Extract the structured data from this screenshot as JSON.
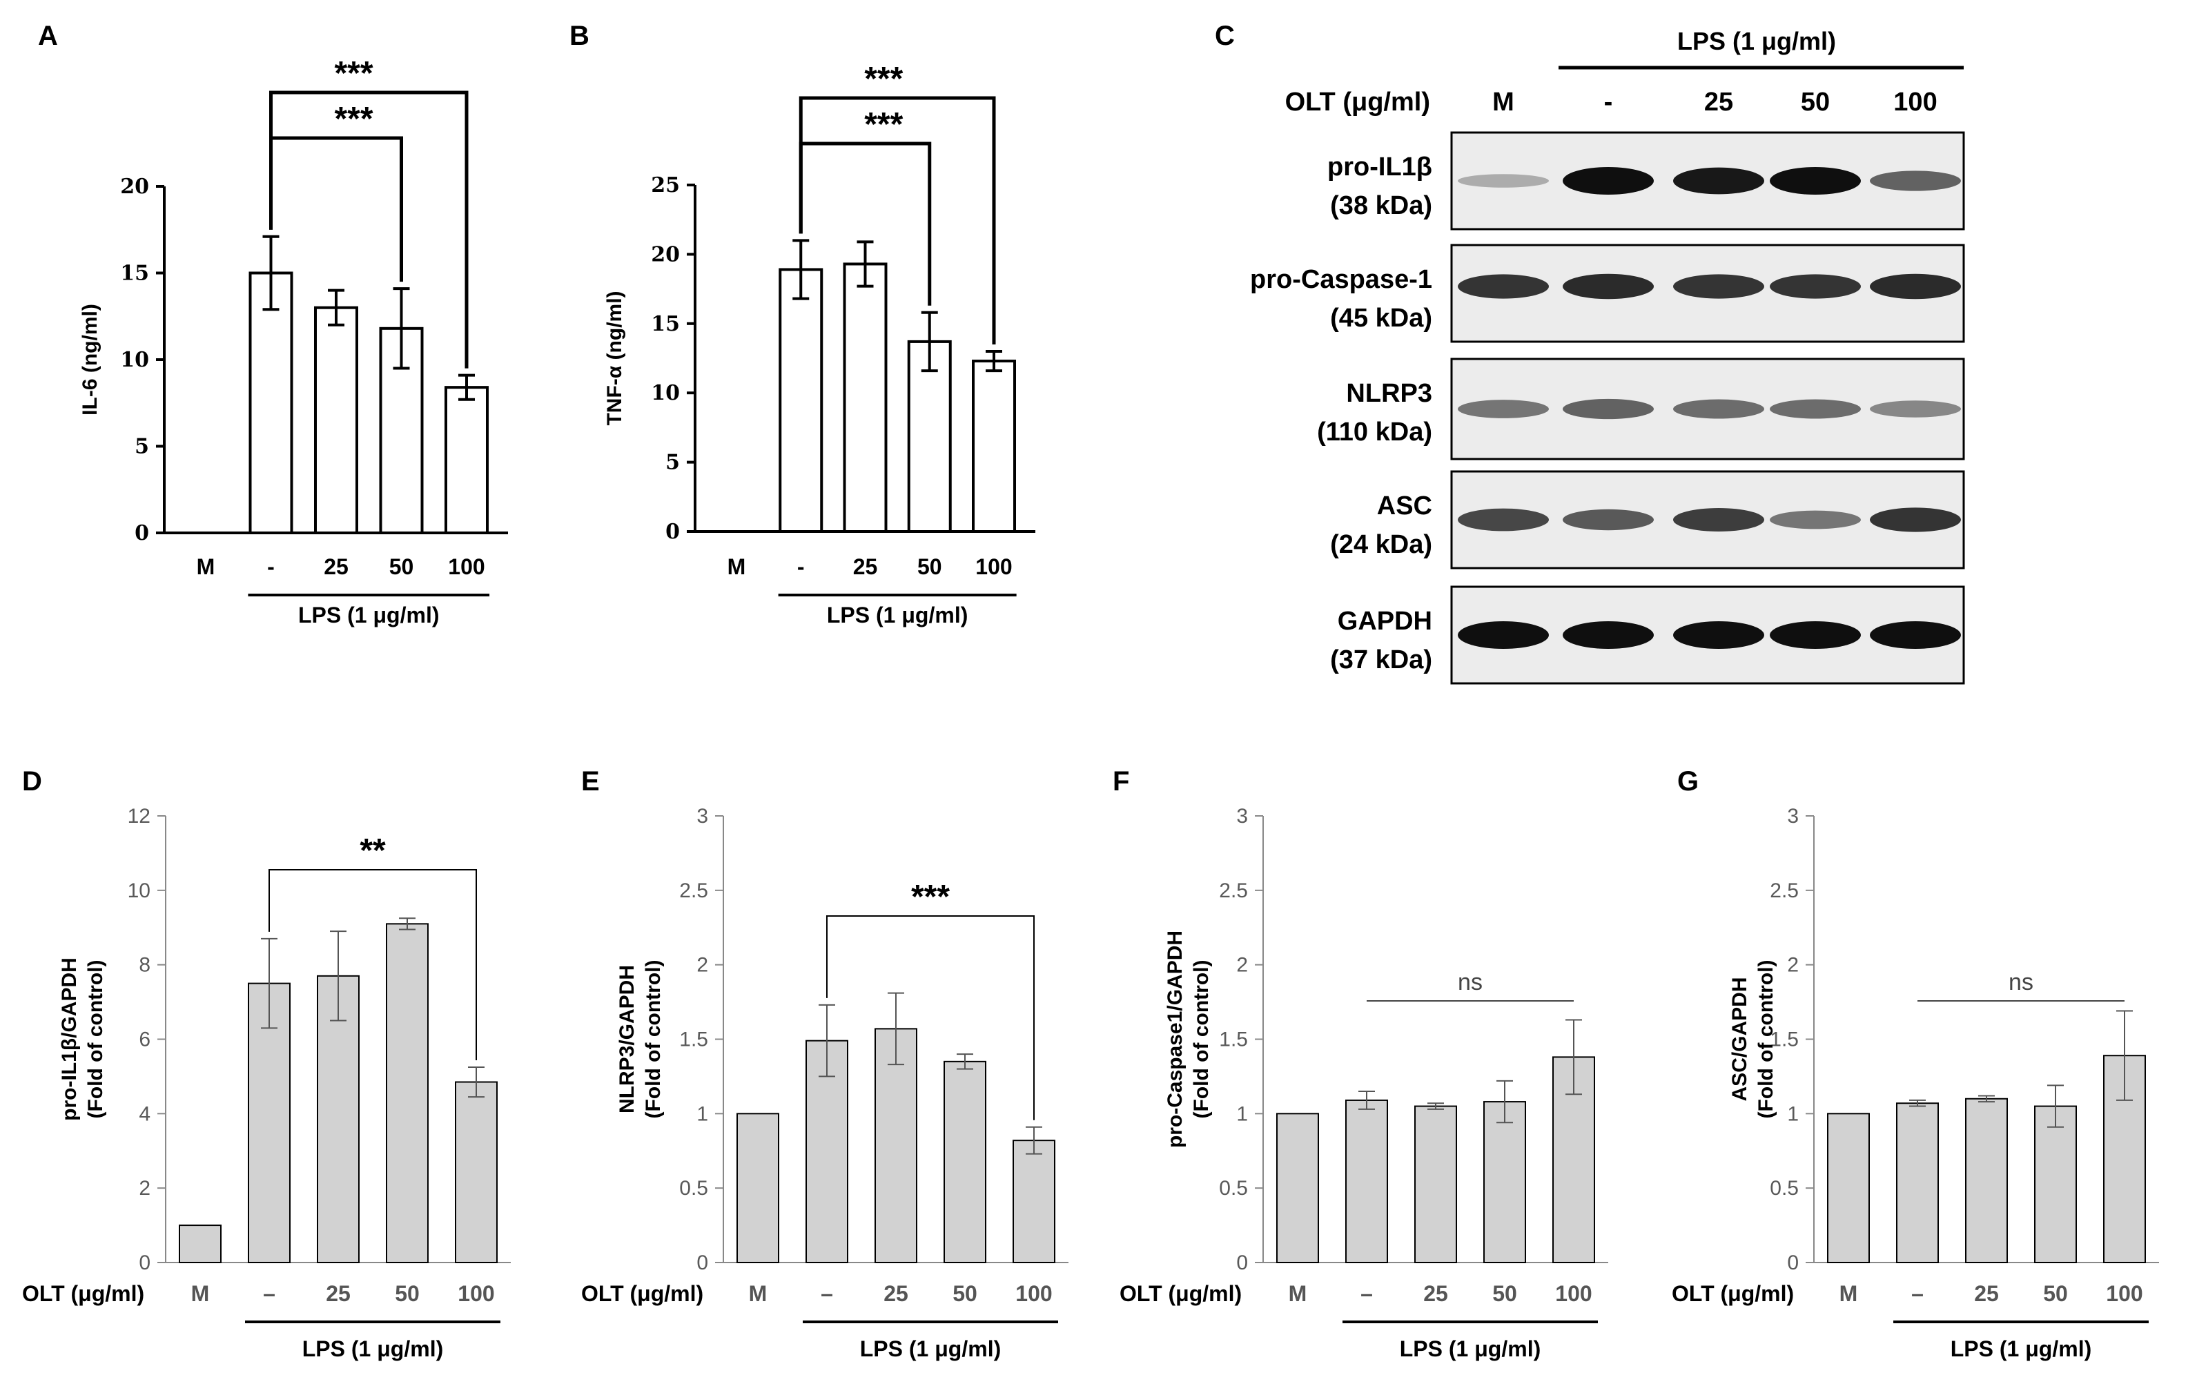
{
  "figure": {
    "blot": {
      "panel_label": "C",
      "lps_label": "LPS (1 μg/ml)",
      "olt_label": "OLT (μg/ml)",
      "lanes": [
        "M",
        "-",
        "25",
        "50",
        "100"
      ],
      "rows": [
        {
          "name": "pro-IL1β",
          "kda": "(38 kDa)",
          "intensity": [
            0.15,
            1.0,
            0.95,
            1.0,
            0.55
          ]
        },
        {
          "name": "pro-Caspase-1",
          "kda": "(45 kDa)",
          "intensity": [
            0.8,
            0.85,
            0.8,
            0.8,
            0.85
          ]
        },
        {
          "name": "NLRP3",
          "kda": "(110 kDa)",
          "intensity": [
            0.45,
            0.55,
            0.5,
            0.5,
            0.35
          ]
        },
        {
          "name": "ASC",
          "kda": "(24 kDa)",
          "intensity": [
            0.7,
            0.6,
            0.75,
            0.45,
            0.8
          ]
        },
        {
          "name": "GAPDH",
          "kda": "(37 kDa)",
          "intensity": [
            1.0,
            1.0,
            1.0,
            1.0,
            1.0
          ]
        }
      ]
    }
  },
  "chart_data": [
    {
      "panel_label": "A",
      "type": "bar",
      "style": "outline",
      "categories": [
        "M",
        "-",
        "25",
        "50",
        "100"
      ],
      "values": [
        0,
        15.0,
        13.0,
        11.8,
        8.4
      ],
      "errors": [
        0,
        2.1,
        1.0,
        2.3,
        0.7
      ],
      "ylabel": "IL-6 (ng/ml)",
      "ylim": [
        0,
        20
      ],
      "yticks": [
        "0",
        "5",
        "10",
        "15",
        "20"
      ],
      "group_label": "LPS (1 μg/ml)",
      "significance": [
        {
          "from": 1,
          "to": 3,
          "label": "***"
        },
        {
          "from": 1,
          "to": 4,
          "label": "***"
        }
      ]
    },
    {
      "panel_label": "B",
      "type": "bar",
      "style": "outline",
      "categories": [
        "M",
        "-",
        "25",
        "50",
        "100"
      ],
      "values": [
        0,
        18.9,
        19.3,
        13.7,
        12.3
      ],
      "errors": [
        0,
        2.1,
        1.6,
        2.1,
        0.7
      ],
      "ylabel": "TNF-α (ng/ml)",
      "ylim": [
        0,
        25
      ],
      "yticks": [
        "0",
        "5",
        "10",
        "15",
        "20",
        "25"
      ],
      "group_label": "LPS (1 μg/ml)",
      "significance": [
        {
          "from": 1,
          "to": 3,
          "label": "***"
        },
        {
          "from": 1,
          "to": 4,
          "label": "***"
        }
      ]
    },
    {
      "panel_label": "D",
      "type": "bar",
      "style": "gray",
      "categories": [
        "M",
        "–",
        "25",
        "50",
        "100"
      ],
      "values": [
        1.0,
        7.5,
        7.7,
        9.1,
        4.85
      ],
      "errors": [
        0,
        1.2,
        1.2,
        0.15,
        0.4
      ],
      "ylabel": "pro-IL1β/GAPDH\n(Fold of control)",
      "ylim": [
        0,
        12
      ],
      "yticks": [
        "0",
        "2",
        "4",
        "6",
        "8",
        "10",
        "12"
      ],
      "xlabel": "OLT (μg/ml)",
      "group_label": "LPS (1 μg/ml)",
      "significance": [
        {
          "from": 1,
          "to": 4,
          "label": "**"
        }
      ]
    },
    {
      "panel_label": "E",
      "type": "bar",
      "style": "gray",
      "categories": [
        "M",
        "–",
        "25",
        "50",
        "100"
      ],
      "values": [
        1.0,
        1.49,
        1.57,
        1.35,
        0.82
      ],
      "errors": [
        0,
        0.24,
        0.24,
        0.05,
        0.09
      ],
      "ylabel": "NLRP3/GAPDH\n(Fold of control)",
      "ylim": [
        0,
        3
      ],
      "yticks": [
        "0",
        "0.5",
        "1",
        "1.5",
        "2",
        "2.5",
        "3"
      ],
      "xlabel": "OLT (μg/ml)",
      "group_label": "LPS (1 μg/ml)",
      "significance": [
        {
          "from": 1,
          "to": 4,
          "label": "***"
        }
      ]
    },
    {
      "panel_label": "F",
      "type": "bar",
      "style": "gray",
      "categories": [
        "M",
        "–",
        "25",
        "50",
        "100"
      ],
      "values": [
        1.0,
        1.09,
        1.05,
        1.08,
        1.38
      ],
      "errors": [
        0,
        0.06,
        0.02,
        0.14,
        0.25
      ],
      "ylabel": "pro-Caspase1/GAPDH\n(Fold of control)",
      "ylim": [
        0,
        3
      ],
      "yticks": [
        "0",
        "0.5",
        "1",
        "1.5",
        "2",
        "2.5",
        "3"
      ],
      "xlabel": "OLT (μg/ml)",
      "group_label": "LPS (1 μg/ml)",
      "significance": [
        {
          "from": 1,
          "to": 4,
          "label": "ns",
          "line_only": true
        }
      ]
    },
    {
      "panel_label": "G",
      "type": "bar",
      "style": "gray",
      "categories": [
        "M",
        "–",
        "25",
        "50",
        "100"
      ],
      "values": [
        1.0,
        1.07,
        1.1,
        1.05,
        1.39
      ],
      "errors": [
        0,
        0.02,
        0.02,
        0.14,
        0.3
      ],
      "ylabel": "ASC/GAPDH\n(Fold of control)",
      "ylim": [
        0,
        3
      ],
      "yticks": [
        "0",
        "0.5",
        "1",
        "1.5",
        "2",
        "2.5",
        "3"
      ],
      "xlabel": "OLT (μg/ml)",
      "group_label": "LPS (1 μg/ml)",
      "significance": [
        {
          "from": 1,
          "to": 4,
          "label": "ns",
          "line_only": true
        }
      ]
    }
  ]
}
